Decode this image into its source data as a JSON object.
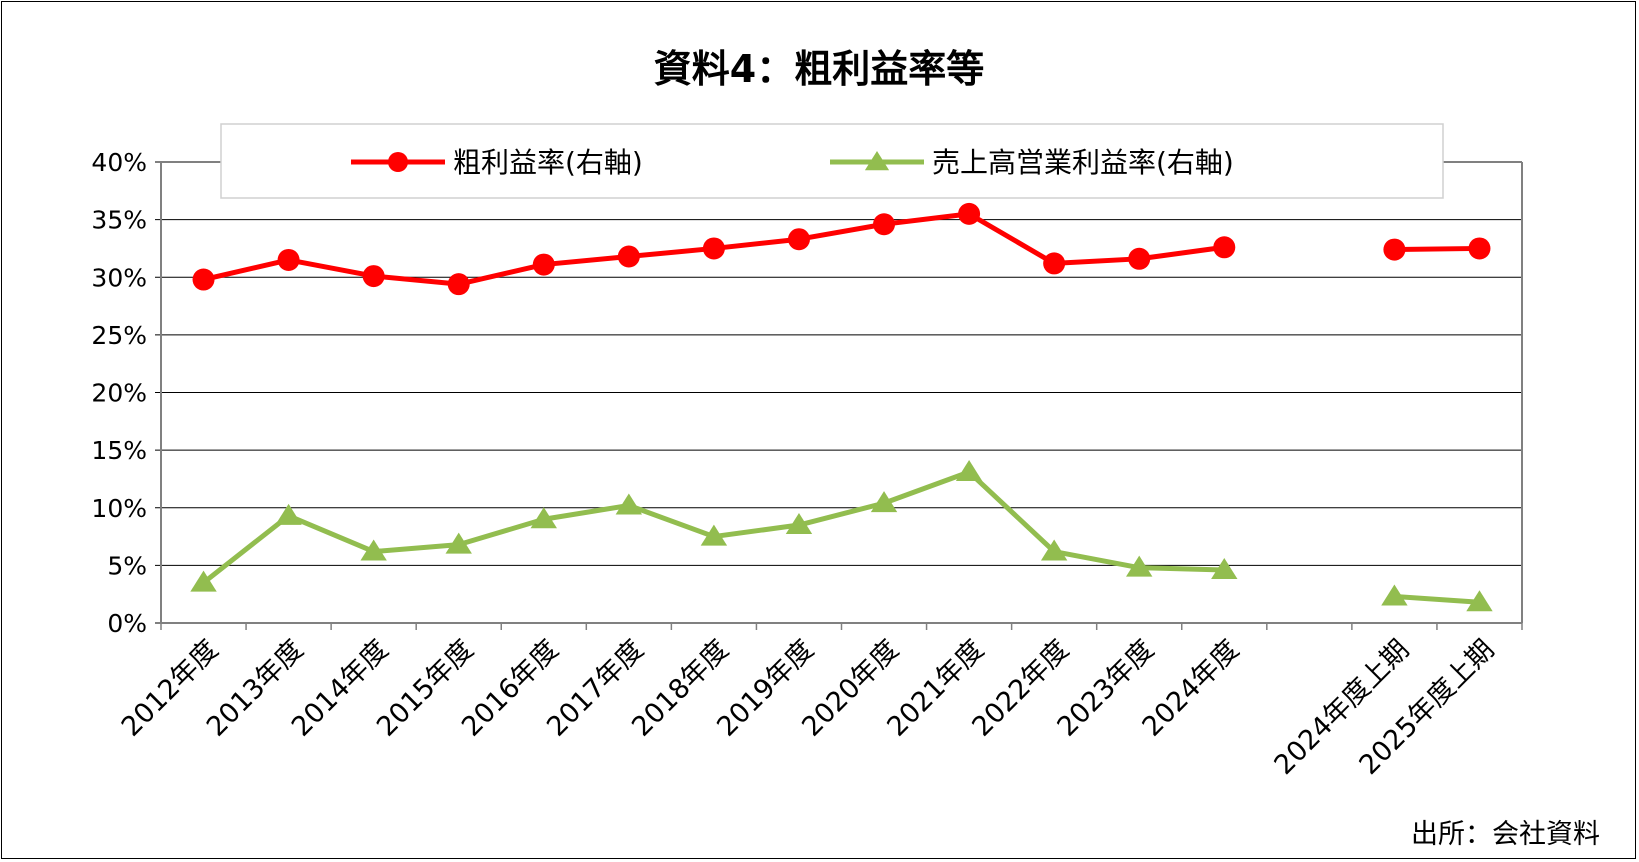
{
  "chart_data": {
    "type": "line",
    "title": "資料4：粗利益率等",
    "source": "出所：会社資料",
    "categories": [
      "2012年度",
      "2013年度",
      "2014年度",
      "2015年度",
      "2016年度",
      "2017年度",
      "2018年度",
      "2019年度",
      "2020年度",
      "2021年度",
      "2022年度",
      "2023年度",
      "2024年度",
      "",
      "2024年度上期",
      "2025年度上期"
    ],
    "yticks": [
      "0%",
      "5%",
      "10%",
      "15%",
      "20%",
      "25%",
      "30%",
      "35%",
      "40%"
    ],
    "ylim": [
      0,
      40
    ],
    "grid": true,
    "legend_position": "top",
    "series": [
      {
        "name": "粗利益率(右軸)",
        "color": "#ff0000",
        "marker": "circle",
        "values": [
          29.8,
          31.5,
          30.1,
          29.4,
          31.1,
          31.8,
          32.5,
          33.3,
          34.6,
          35.5,
          31.2,
          31.6,
          32.6,
          null,
          32.4,
          32.5
        ]
      },
      {
        "name": "売上高営業利益率(右軸)",
        "color": "#92bd4f",
        "marker": "triangle",
        "values": [
          3.5,
          9.3,
          6.2,
          6.8,
          9.0,
          10.2,
          7.5,
          8.5,
          10.4,
          13.1,
          6.2,
          4.8,
          4.6,
          null,
          2.3,
          1.8
        ]
      }
    ]
  }
}
